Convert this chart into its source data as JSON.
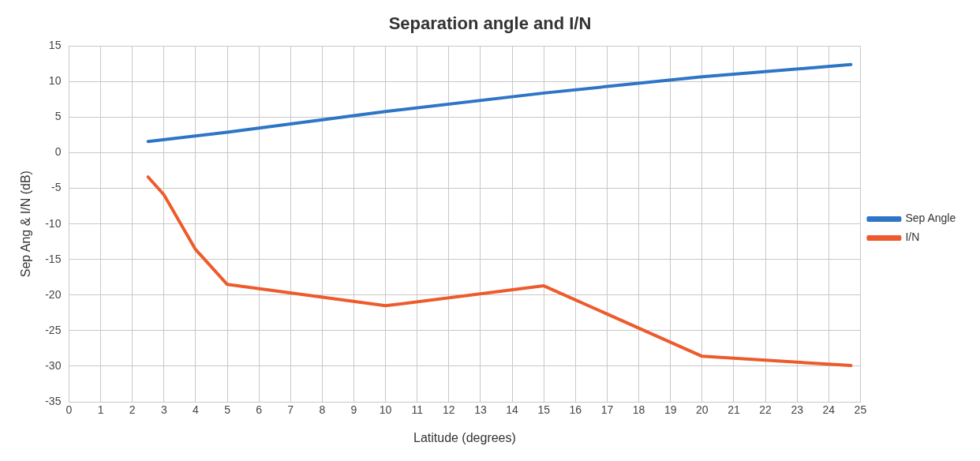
{
  "chart_data": {
    "type": "line",
    "title": "Separation angle and I/N",
    "xlabel": "Latitude (degrees)",
    "ylabel": "Sep Ang & I/N (dB)",
    "xlim": [
      0,
      25
    ],
    "xticks": [
      0,
      1,
      2,
      3,
      4,
      5,
      6,
      7,
      8,
      9,
      10,
      11,
      12,
      13,
      14,
      15,
      16,
      17,
      18,
      19,
      20,
      21,
      22,
      23,
      24,
      25
    ],
    "ylim": [
      -35,
      15
    ],
    "yticks": [
      -35,
      -30,
      -25,
      -20,
      -15,
      -10,
      -5,
      0,
      5,
      10,
      15
    ],
    "grid": true,
    "legend": "right",
    "marker": "none",
    "line_style": "solid",
    "series": [
      {
        "name": "Sep Angle",
        "color": "#2e75c6",
        "x": [
          2.5,
          5,
          10,
          15,
          20,
          24.7
        ],
        "values": [
          1.6,
          2.9,
          5.8,
          8.4,
          10.7,
          12.4
        ]
      },
      {
        "name": "I/N",
        "color": "#ed5b2c",
        "x": [
          2.5,
          3,
          4,
          5,
          10,
          15,
          20,
          24.7
        ],
        "values": [
          -3.4,
          -5.9,
          -13.6,
          -18.5,
          -21.5,
          -18.7,
          -28.6,
          -29.9
        ]
      }
    ]
  }
}
